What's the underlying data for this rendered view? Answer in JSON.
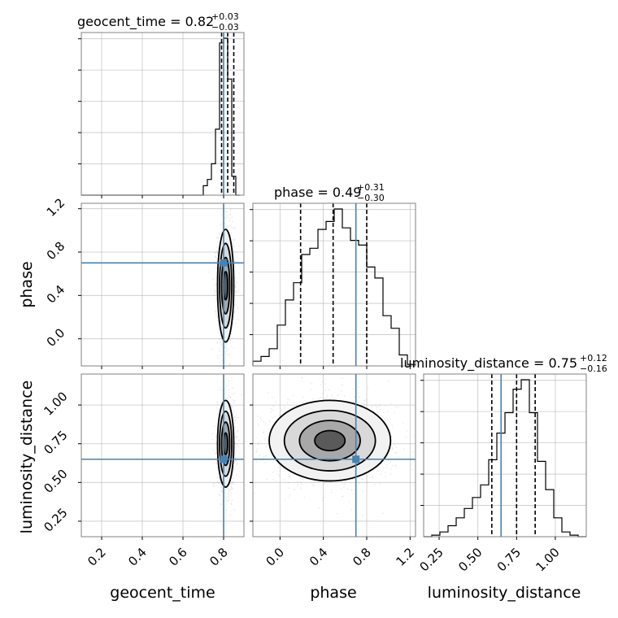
{
  "chart_data": {
    "type": "corner",
    "parameters": [
      "geocent_time",
      "phase",
      "luminosity_distance"
    ],
    "truth_color": "#4682b4",
    "grid": true,
    "truths": {
      "geocent_time": 0.8,
      "phase": 0.7,
      "luminosity_distance": 0.65
    },
    "axes": {
      "geocent_time": {
        "lim": [
          0.1,
          0.9
        ],
        "ticks": [
          0.2,
          0.4,
          0.6,
          0.8
        ],
        "tick_labels": [
          "0.2",
          "0.4",
          "0.6",
          "0.8"
        ]
      },
      "phase": {
        "lim": [
          -0.25,
          1.25
        ],
        "ticks": [
          0.0,
          0.4,
          0.8,
          1.2
        ],
        "tick_labels": [
          "0.0",
          "0.4",
          "0.8",
          "1.2"
        ]
      },
      "luminosity_distance": {
        "lim": [
          0.15,
          1.2
        ],
        "ticks": [
          0.25,
          0.5,
          0.75,
          1.0
        ],
        "tick_labels": [
          "0.25",
          "0.50",
          "0.75",
          "1.00"
        ]
      }
    },
    "titles": {
      "geocent_time": {
        "text": "geocent_time = 0.82",
        "plus": "+0.03",
        "minus": "−0.03"
      },
      "phase": {
        "text": "phase = 0.49",
        "plus": "+0.31",
        "minus": "−0.30"
      },
      "luminosity_distance": {
        "text": "luminosity_distance = 0.75",
        "plus": "+0.12",
        "minus": "−0.16"
      }
    },
    "quantiles": {
      "geocent_time": [
        0.79,
        0.82,
        0.85
      ],
      "phase": [
        0.19,
        0.49,
        0.8
      ],
      "luminosity_distance": [
        0.59,
        0.75,
        0.87
      ]
    },
    "histograms": {
      "geocent_time": {
        "bin_edges": [
          0.7,
          0.72,
          0.74,
          0.76,
          0.78,
          0.8,
          0.82,
          0.84,
          0.86,
          0.88
        ],
        "counts": [
          0.06,
          0.1,
          0.2,
          0.42,
          0.97,
          1.0,
          0.74,
          0.12,
          0.0
        ]
      },
      "phase": {
        "bin_edges": [
          -0.25,
          -0.175,
          -0.1,
          -0.025,
          0.05,
          0.125,
          0.2,
          0.275,
          0.35,
          0.425,
          0.5,
          0.575,
          0.65,
          0.725,
          0.8,
          0.875,
          0.95,
          1.025,
          1.1,
          1.175,
          1.25
        ],
        "counts": [
          0.03,
          0.06,
          0.11,
          0.26,
          0.42,
          0.53,
          0.71,
          0.75,
          0.87,
          0.92,
          1.0,
          0.88,
          0.8,
          0.77,
          0.63,
          0.56,
          0.32,
          0.24,
          0.07,
          0.01
        ]
      },
      "luminosity_distance": {
        "bin_edges": [
          0.15,
          0.2025,
          0.255,
          0.3075,
          0.36,
          0.4125,
          0.465,
          0.5175,
          0.57,
          0.6225,
          0.675,
          0.7275,
          0.78,
          0.8325,
          0.885,
          0.9375,
          0.99,
          1.0425,
          1.095,
          1.1475,
          1.2
        ],
        "counts": [
          0.0,
          0.01,
          0.03,
          0.07,
          0.12,
          0.18,
          0.25,
          0.33,
          0.49,
          0.66,
          0.79,
          0.94,
          1.0,
          0.79,
          0.48,
          0.3,
          0.12,
          0.03,
          0.01,
          0.0
        ]
      }
    },
    "panels_2d": [
      {
        "x": "geocent_time",
        "y": "phase",
        "center": [
          0.81,
          0.49
        ],
        "spread": [
          0.02,
          0.26
        ]
      },
      {
        "x": "geocent_time",
        "y": "luminosity_distance",
        "center": [
          0.81,
          0.75
        ],
        "spread": [
          0.02,
          0.14
        ]
      },
      {
        "x": "phase",
        "y": "luminosity_distance",
        "center": [
          0.46,
          0.77
        ],
        "spread": [
          0.28,
          0.13
        ]
      }
    ]
  }
}
